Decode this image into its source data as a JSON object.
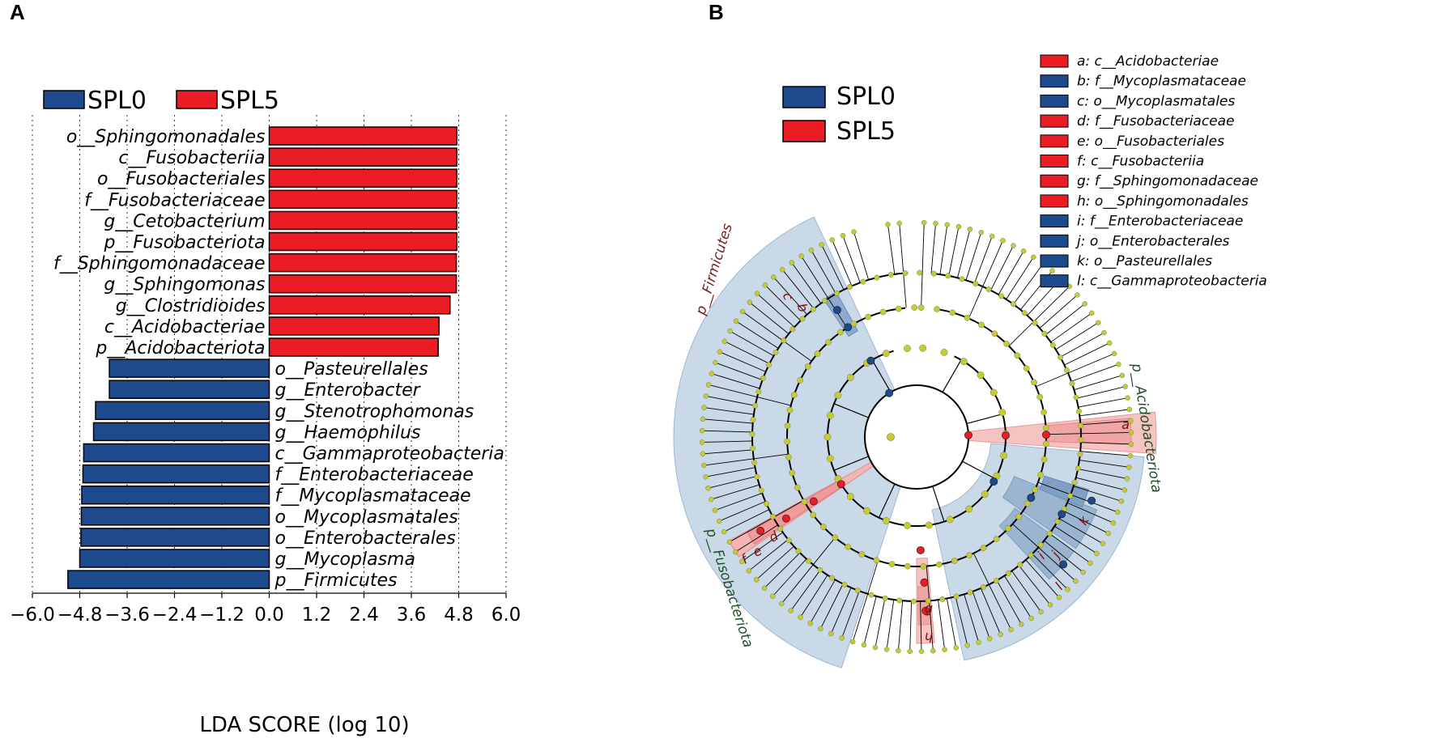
{
  "panel_labels": {
    "a": "A",
    "b": "B"
  },
  "colors": {
    "SPL0": "#1c4a8c",
    "SPL5": "#ea1d24",
    "node": "#c5cc2e",
    "blue_shade": "#c9d9e8",
    "red_shade": "#f6c3c3"
  },
  "legend": [
    {
      "name": "SPL0",
      "color": "#1c4a8c"
    },
    {
      "name": "SPL5",
      "color": "#ea1d24"
    }
  ],
  "chart_data": [
    {
      "type": "bar",
      "orientation": "horizontal",
      "xlabel": "LDA SCORE (log 10)",
      "xlim": [
        -6.0,
        6.0
      ],
      "xticks": [
        "−6.0",
        "−4.8",
        "−3.6",
        "−2.4",
        "−1.2",
        "0.0",
        "1.2",
        "2.4",
        "3.6",
        "4.8",
        "6.0"
      ],
      "xtick_values": [
        -6.0,
        -4.8,
        -3.6,
        -2.4,
        -1.2,
        0.0,
        1.2,
        2.4,
        3.6,
        4.8,
        6.0
      ],
      "grid": true,
      "bars": [
        {
          "label": "o__Sphingomonadales",
          "value": 4.75,
          "group": "SPL5"
        },
        {
          "label": "c__Fusobacteriia",
          "value": 4.75,
          "group": "SPL5"
        },
        {
          "label": "o__Fusobacteriales",
          "value": 4.75,
          "group": "SPL5"
        },
        {
          "label": "f__Fusobacteriaceae",
          "value": 4.75,
          "group": "SPL5"
        },
        {
          "label": "g__Cetobacterium",
          "value": 4.75,
          "group": "SPL5"
        },
        {
          "label": "p__Fusobacteriota",
          "value": 4.75,
          "group": "SPL5"
        },
        {
          "label": "f__Sphingomonadaceae",
          "value": 4.74,
          "group": "SPL5"
        },
        {
          "label": "g__Sphingomonas",
          "value": 4.74,
          "group": "SPL5"
        },
        {
          "label": "g__Clostridioides",
          "value": 4.58,
          "group": "SPL5"
        },
        {
          "label": "c__Acidobacteriae",
          "value": 4.3,
          "group": "SPL5"
        },
        {
          "label": "p__Acidobacteriota",
          "value": 4.28,
          "group": "SPL5"
        },
        {
          "label": "o__Pasteurellales",
          "value": -4.05,
          "group": "SPL0"
        },
        {
          "label": "g__Enterobacter",
          "value": -4.05,
          "group": "SPL0"
        },
        {
          "label": "g__Stenotrophomonas",
          "value": -4.4,
          "group": "SPL0"
        },
        {
          "label": "g__Haemophilus",
          "value": -4.45,
          "group": "SPL0"
        },
        {
          "label": "c__Gammaproteobacteria",
          "value": -4.7,
          "group": "SPL0"
        },
        {
          "label": "f__Enterobacteriaceae",
          "value": -4.72,
          "group": "SPL0"
        },
        {
          "label": "f__Mycoplasmataceae",
          "value": -4.75,
          "group": "SPL0"
        },
        {
          "label": "o__Mycoplasmatales",
          "value": -4.76,
          "group": "SPL0"
        },
        {
          "label": "o__Enterobacterales",
          "value": -4.77,
          "group": "SPL0"
        },
        {
          "label": "g__Mycoplasma",
          "value": -4.8,
          "group": "SPL0"
        },
        {
          "label": "p__Firmicutes",
          "value": -5.1,
          "group": "SPL0"
        }
      ]
    },
    {
      "type": "cladogram",
      "legend": [
        {
          "name": "SPL0",
          "color": "#1c4a8c"
        },
        {
          "name": "SPL5",
          "color": "#ea1d24"
        }
      ],
      "key": [
        {
          "letter": "a",
          "text": "a: c__Acidobacteriae",
          "group": "SPL5"
        },
        {
          "letter": "b",
          "text": "b: f__Mycoplasmataceae",
          "group": "SPL0"
        },
        {
          "letter": "c",
          "text": "c: o__Mycoplasmatales",
          "group": "SPL0"
        },
        {
          "letter": "d",
          "text": "d: f__Fusobacteriaceae",
          "group": "SPL5"
        },
        {
          "letter": "e",
          "text": "e: o__Fusobacteriales",
          "group": "SPL5"
        },
        {
          "letter": "f",
          "text": "f: c__Fusobacteriia",
          "group": "SPL5"
        },
        {
          "letter": "g",
          "text": "g: f__Sphingomonadaceae",
          "group": "SPL5"
        },
        {
          "letter": "h",
          "text": "h: o__Sphingomonadales",
          "group": "SPL5"
        },
        {
          "letter": "i",
          "text": "i: f__Enterobacteriaceae",
          "group": "SPL0"
        },
        {
          "letter": "j",
          "text": "j: o__Enterobacterales",
          "group": "SPL0"
        },
        {
          "letter": "k",
          "text": "k: o__Pasteurellales",
          "group": "SPL0"
        },
        {
          "letter": "l",
          "text": "l: c__Gammaproteobacteria",
          "group": "SPL0"
        }
      ],
      "phylum_labels": [
        {
          "text": "p__Firmicutes",
          "group": "SPL0"
        },
        {
          "text": "p__Acidobacteriota",
          "group": "SPL5"
        },
        {
          "text": "p__Fusobacteriota",
          "group": "SPL5"
        }
      ],
      "sector_letters": [
        {
          "letter": "c",
          "group": "SPL0"
        },
        {
          "letter": "b",
          "group": "SPL0"
        },
        {
          "letter": "a",
          "group": "SPL5"
        },
        {
          "letter": "k",
          "group": "SPL0"
        },
        {
          "letter": "j",
          "group": "SPL0"
        },
        {
          "letter": "i",
          "group": "SPL0"
        },
        {
          "letter": "l",
          "group": "SPL0"
        },
        {
          "letter": "g",
          "group": "SPL5"
        },
        {
          "letter": "h",
          "group": "SPL5"
        },
        {
          "letter": "d",
          "group": "SPL5"
        },
        {
          "letter": "e",
          "group": "SPL5"
        },
        {
          "letter": "f",
          "group": "SPL5"
        }
      ]
    }
  ]
}
